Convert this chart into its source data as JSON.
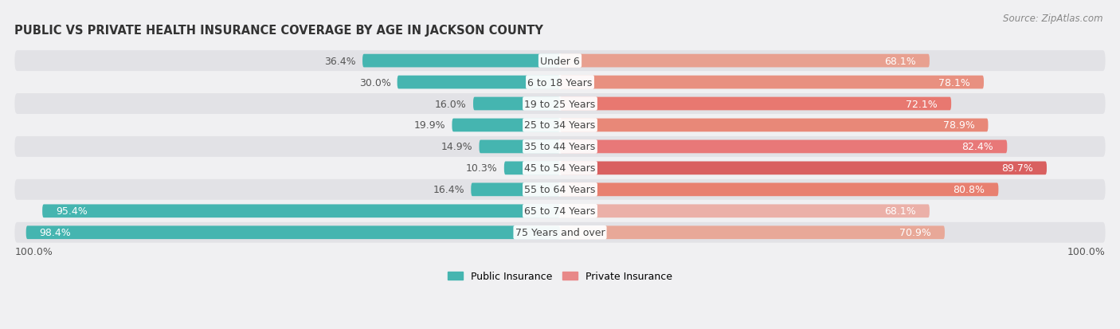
{
  "title": "PUBLIC VS PRIVATE HEALTH INSURANCE COVERAGE BY AGE IN JACKSON COUNTY",
  "source": "Source: ZipAtlas.com",
  "categories": [
    "Under 6",
    "6 to 18 Years",
    "19 to 25 Years",
    "25 to 34 Years",
    "35 to 44 Years",
    "45 to 54 Years",
    "55 to 64 Years",
    "65 to 74 Years",
    "75 Years and over"
  ],
  "public_values": [
    36.4,
    30.0,
    16.0,
    19.9,
    14.9,
    10.3,
    16.4,
    95.4,
    98.4
  ],
  "private_values": [
    68.1,
    78.1,
    72.1,
    78.9,
    82.4,
    89.7,
    80.8,
    68.1,
    70.9
  ],
  "public_color": "#45b5b0",
  "private_colors": [
    "#e8a090",
    "#e89080",
    "#e87870",
    "#e88878",
    "#e87878",
    "#d96060",
    "#e88070",
    "#ebb0a8",
    "#e8a898"
  ],
  "row_bg_light": "#f0f0f2",
  "row_bg_dark": "#e2e2e6",
  "max_value": 100.0,
  "bar_height": 0.62,
  "label_fontsize": 9.0,
  "title_fontsize": 10.5,
  "source_fontsize": 8.5,
  "legend_fontsize": 9.0,
  "axis_label_left": "100.0%",
  "axis_label_right": "100.0%",
  "title_color": "#333333",
  "bg_color": "#f0f0f2"
}
